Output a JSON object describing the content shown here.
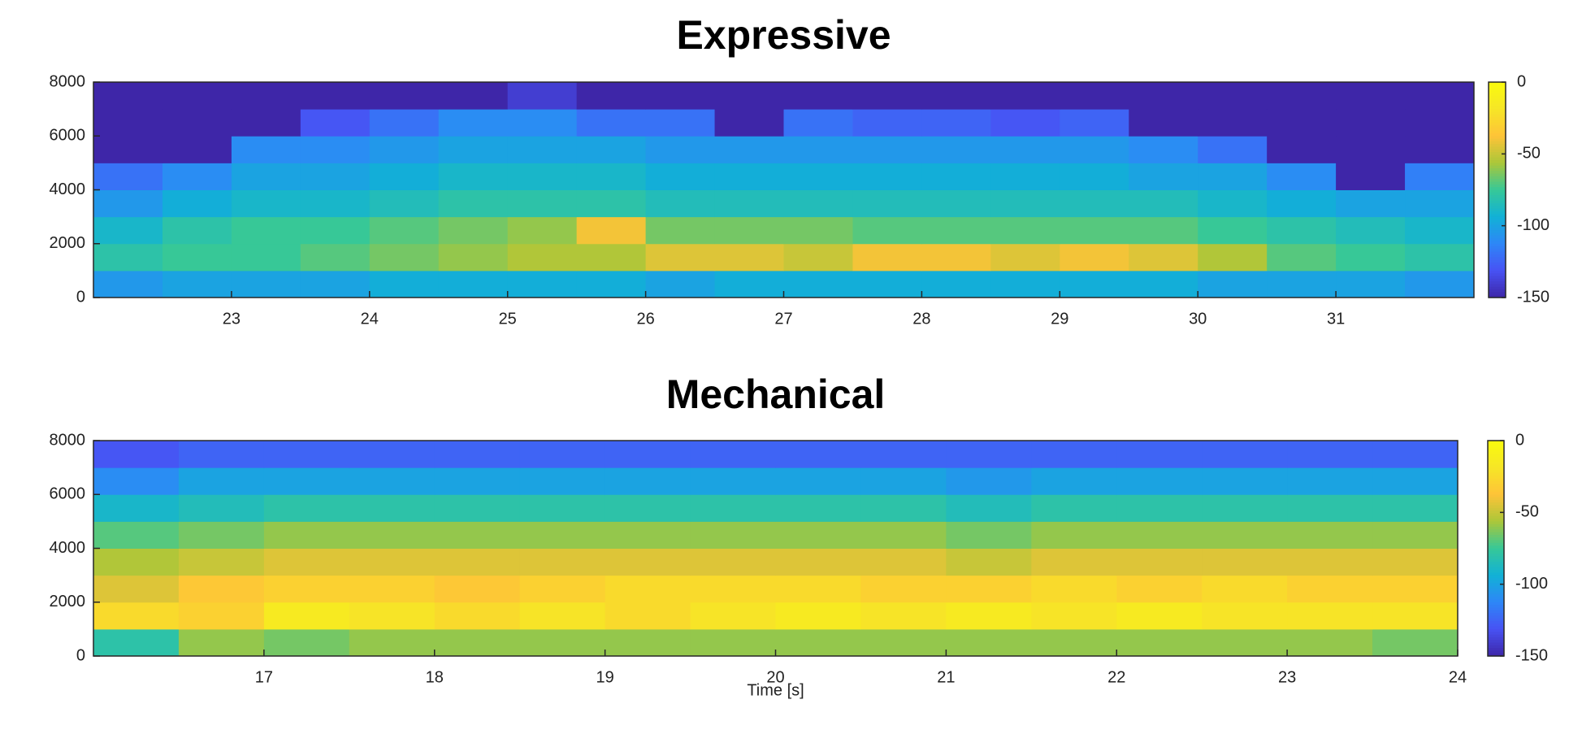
{
  "chart_data": [
    {
      "type": "heatmap",
      "title": "Expressive",
      "colormap": "parula",
      "xlim": [
        22,
        32
      ],
      "xticks": [
        23,
        24,
        25,
        26,
        27,
        28,
        29,
        30,
        31
      ],
      "ylim": [
        0,
        8000
      ],
      "yticks": [
        0,
        2000,
        4000,
        6000,
        8000
      ],
      "xbins": [
        22,
        22.5,
        23,
        23.5,
        24,
        24.5,
        25,
        25.5,
        26,
        26.5,
        27,
        27.5,
        28,
        28.5,
        29,
        29.5,
        30,
        30.5,
        31,
        31.5,
        32
      ],
      "ybins": [
        0,
        1000,
        2000,
        3000,
        4000,
        5000,
        6000,
        7000,
        8000
      ],
      "clim": [
        -150,
        0
      ],
      "cticks": [
        0,
        -50,
        -100,
        -150
      ],
      "z": [
        [
          -105,
          -100,
          -100,
          -100,
          -95,
          -95,
          -95,
          -95,
          -100,
          -95,
          -95,
          -95,
          -95,
          -95,
          -95,
          -95,
          -100,
          -100,
          -100,
          -105
        ],
        [
          -80,
          -75,
          -75,
          -70,
          -65,
          -60,
          -55,
          -55,
          -45,
          -45,
          -50,
          -40,
          -40,
          -45,
          -40,
          -45,
          -55,
          -70,
          -75,
          -80
        ],
        [
          -90,
          -80,
          -75,
          -75,
          -70,
          -65,
          -60,
          -40,
          -65,
          -65,
          -65,
          -70,
          -70,
          -70,
          -70,
          -70,
          -75,
          -80,
          -85,
          -90
        ],
        [
          -105,
          -95,
          -90,
          -90,
          -85,
          -80,
          -80,
          -80,
          -85,
          -85,
          -85,
          -85,
          -85,
          -85,
          -85,
          -85,
          -90,
          -95,
          -100,
          -100
        ],
        [
          -120,
          -110,
          -100,
          -100,
          -95,
          -90,
          -90,
          -90,
          -95,
          -95,
          -95,
          -95,
          -95,
          -95,
          -95,
          -100,
          -100,
          -110,
          -150,
          -115
        ],
        [
          -150,
          -150,
          -110,
          -110,
          -105,
          -100,
          -100,
          -100,
          -105,
          -105,
          -105,
          -105,
          -105,
          -105,
          -105,
          -110,
          -120,
          -150,
          -150,
          -150
        ],
        [
          -150,
          -150,
          -150,
          -130,
          -120,
          -110,
          -110,
          -120,
          -120,
          -150,
          -120,
          -125,
          -125,
          -130,
          -125,
          -150,
          -150,
          -150,
          -150,
          -150
        ],
        [
          -150,
          -150,
          -150,
          -150,
          -150,
          -150,
          -140,
          -150,
          -150,
          -150,
          -150,
          -150,
          -150,
          -150,
          -150,
          -150,
          -150,
          -150,
          -150,
          -150
        ]
      ]
    },
    {
      "type": "heatmap",
      "title": "Mechanical",
      "colormap": "parula",
      "xlabel": "Time [s]",
      "xlim": [
        16,
        24
      ],
      "xticks": [
        17,
        18,
        19,
        20,
        21,
        22,
        23,
        24
      ],
      "ylim": [
        0,
        8000
      ],
      "yticks": [
        0,
        2000,
        4000,
        6000,
        8000
      ],
      "xbins": [
        16,
        16.5,
        17,
        17.5,
        18,
        18.5,
        19,
        19.5,
        20,
        20.5,
        21,
        21.5,
        22,
        22.5,
        23,
        23.5,
        24
      ],
      "ybins": [
        0,
        1000,
        2000,
        3000,
        4000,
        5000,
        6000,
        7000,
        8000
      ],
      "clim": [
        -150,
        0
      ],
      "cticks": [
        0,
        -50,
        -100,
        -150
      ],
      "z": [
        [
          -80,
          -60,
          -65,
          -60,
          -60,
          -60,
          -60,
          -60,
          -60,
          -60,
          -60,
          -60,
          -60,
          -60,
          -60,
          -65
        ],
        [
          -25,
          -30,
          -15,
          -20,
          -25,
          -20,
          -25,
          -20,
          -15,
          -20,
          -15,
          -20,
          -15,
          -20,
          -20,
          -20
        ],
        [
          -45,
          -35,
          -30,
          -30,
          -35,
          -30,
          -25,
          -25,
          -25,
          -30,
          -30,
          -25,
          -30,
          -25,
          -30,
          -30
        ],
        [
          -55,
          -50,
          -45,
          -45,
          -45,
          -45,
          -45,
          -45,
          -45,
          -45,
          -50,
          -45,
          -45,
          -45,
          -45,
          -45
        ],
        [
          -70,
          -65,
          -60,
          -60,
          -60,
          -60,
          -60,
          -60,
          -60,
          -60,
          -65,
          -60,
          -60,
          -60,
          -60,
          -60
        ],
        [
          -90,
          -85,
          -80,
          -80,
          -80,
          -80,
          -80,
          -80,
          -80,
          -80,
          -85,
          -80,
          -80,
          -80,
          -80,
          -80
        ],
        [
          -110,
          -100,
          -100,
          -100,
          -100,
          -100,
          -100,
          -100,
          -100,
          -100,
          -105,
          -100,
          -100,
          -100,
          -100,
          -100
        ],
        [
          -130,
          -125,
          -125,
          -125,
          -125,
          -125,
          -125,
          -125,
          -125,
          -125,
          -125,
          -125,
          -125,
          -125,
          -125,
          -125
        ]
      ]
    }
  ]
}
